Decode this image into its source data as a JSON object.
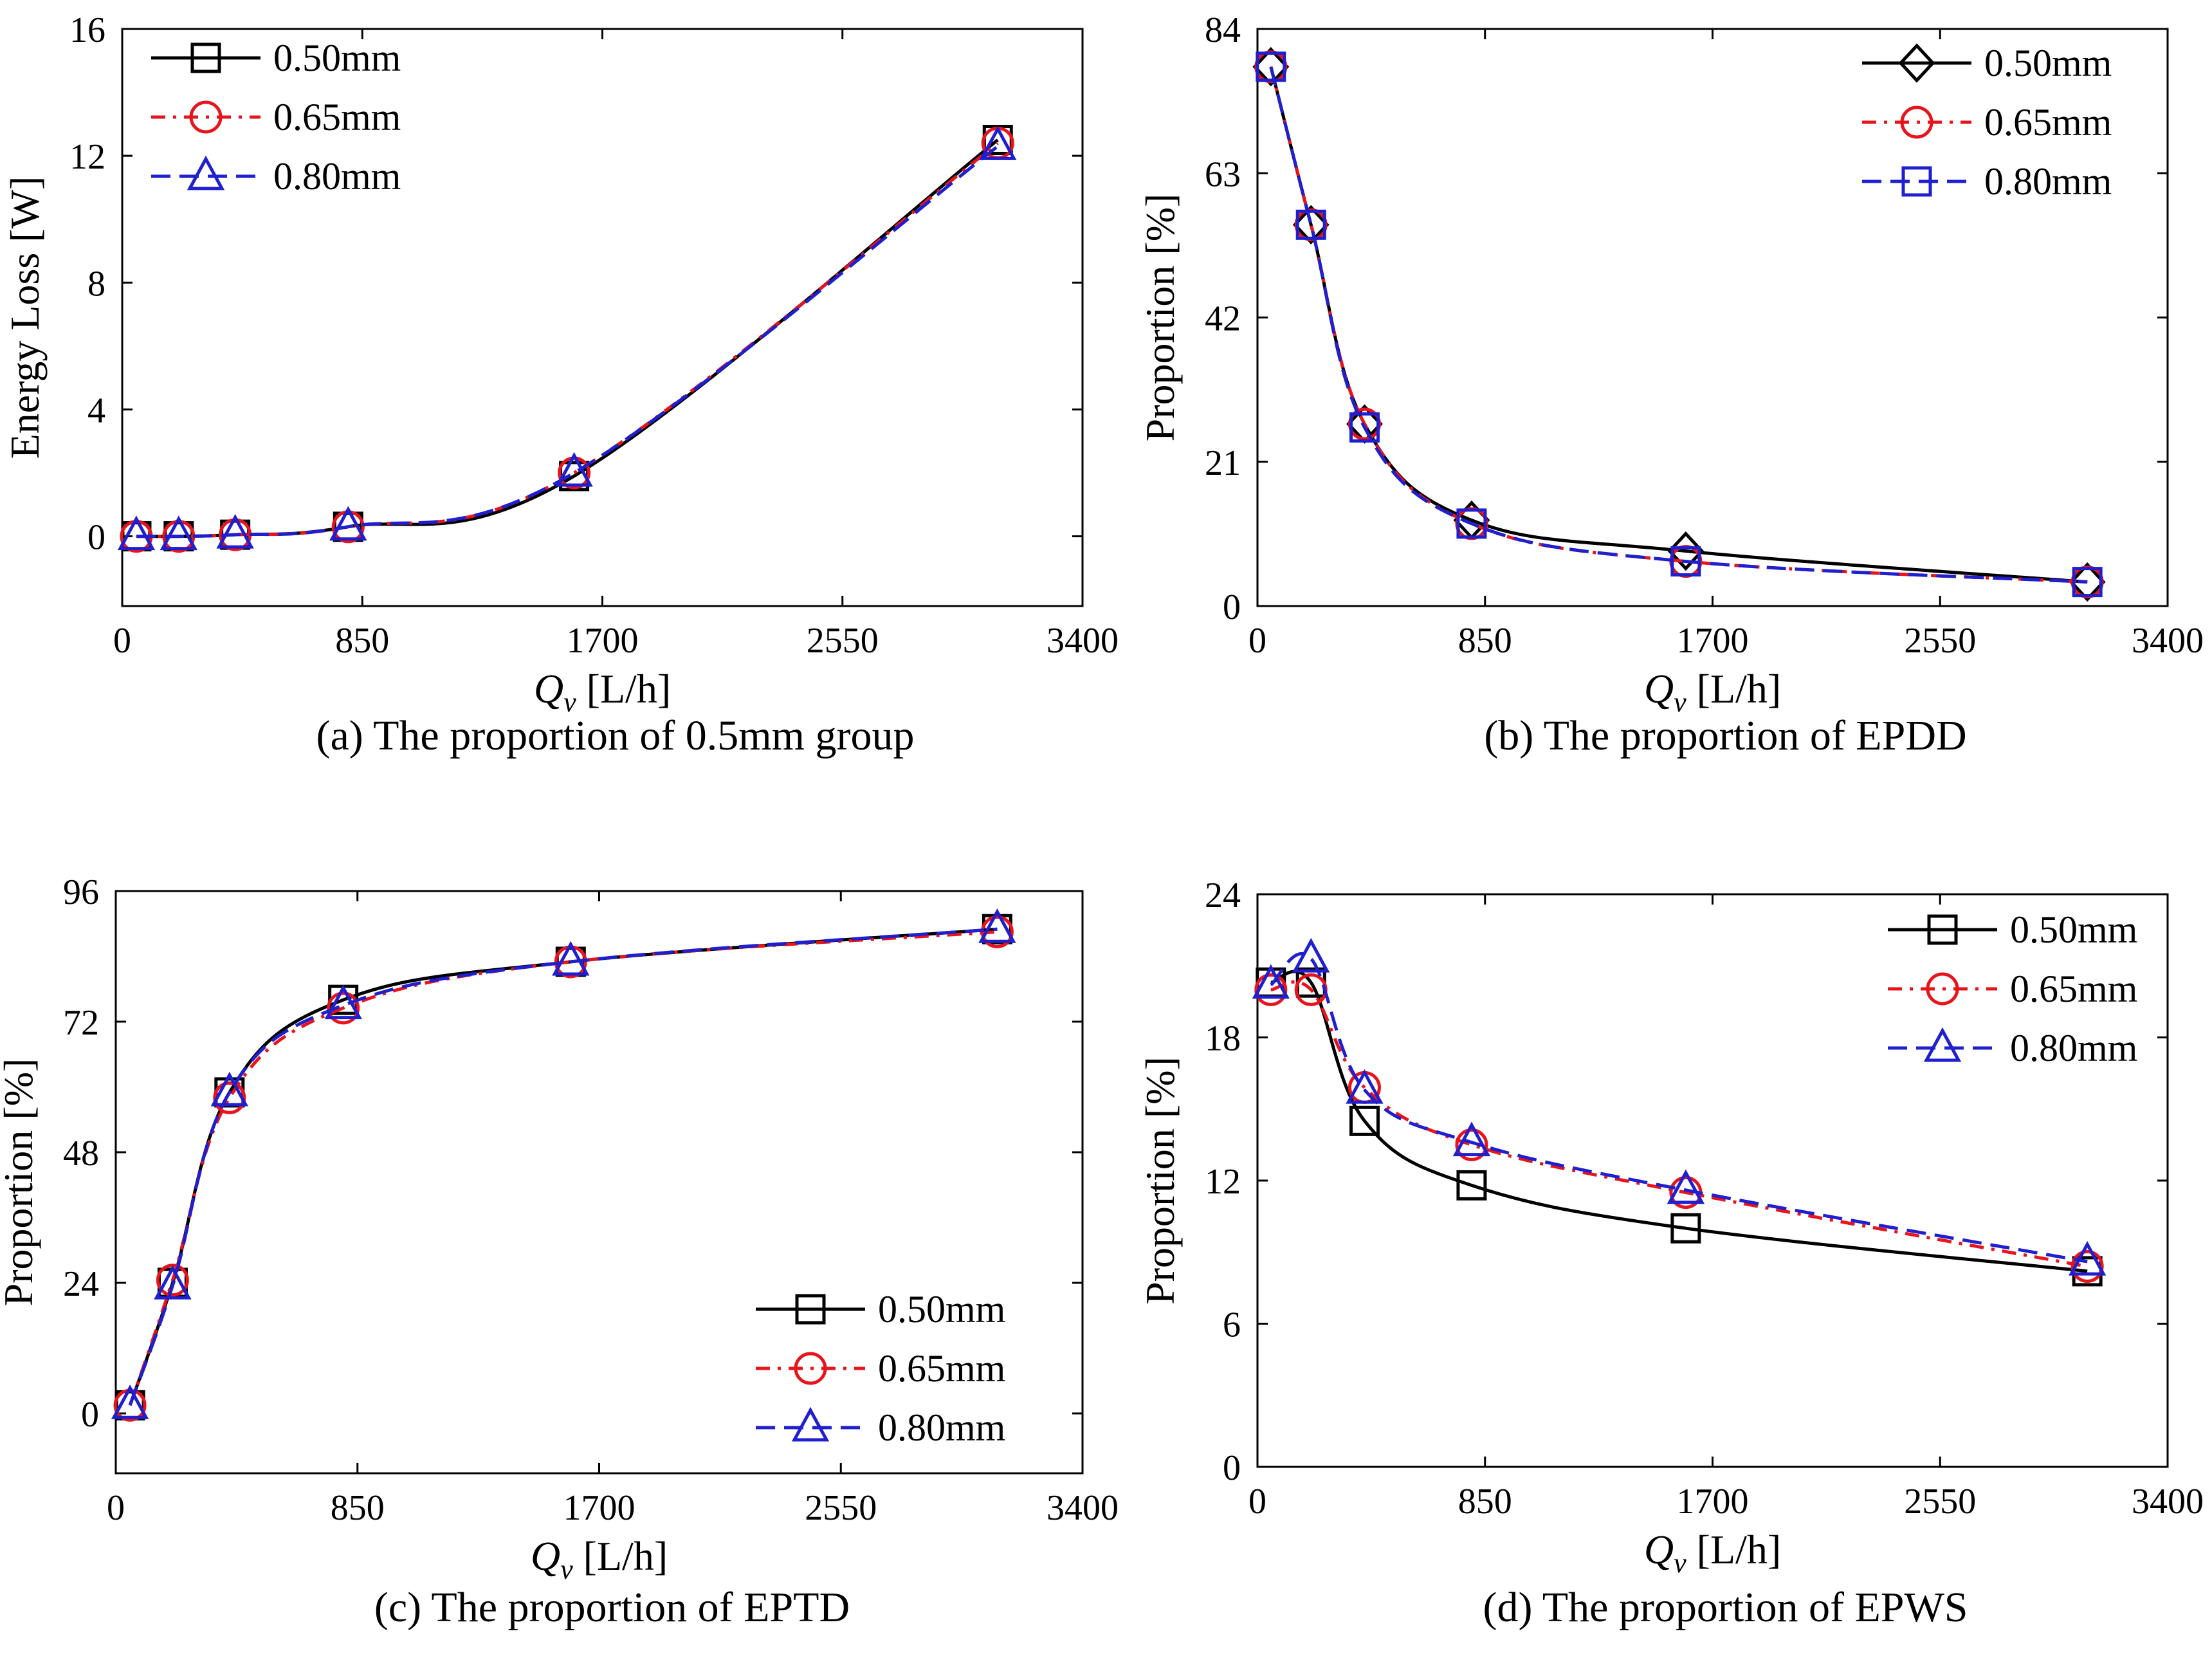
{
  "figure": {
    "markers": {
      "0.50mm": "square",
      "0.65mm": "circle",
      "0.80mm": "triangle"
    }
  },
  "chart_data": [
    {
      "id": "a",
      "type": "line",
      "caption": "(a) The proportion of 0.5mm group",
      "xlabel_main": "Q",
      "xlabel_sub": "v",
      "xlabel_unit": " [L/h]",
      "ylabel": "Energy Loss [W]",
      "xlim": [
        0,
        3400
      ],
      "ylim": [
        -2.2,
        16
      ],
      "xticks": [
        0,
        850,
        1700,
        2550,
        3400
      ],
      "yticks": [
        0,
        4,
        8,
        12,
        16
      ],
      "legend_position": "top-left",
      "series": [
        {
          "name": "0.50mm",
          "color": "#000000",
          "dash": "solid",
          "marker": "square",
          "x": [
            50,
            200,
            400,
            800,
            1600,
            3100
          ],
          "y": [
            0.0,
            0.0,
            0.05,
            0.3,
            1.9,
            12.5
          ]
        },
        {
          "name": "0.65mm",
          "color": "#e8141b",
          "dash": "dashdot",
          "marker": "circle",
          "x": [
            50,
            200,
            400,
            800,
            1600,
            3100
          ],
          "y": [
            0.0,
            0.0,
            0.05,
            0.3,
            2.0,
            12.4
          ]
        },
        {
          "name": "0.80mm",
          "color": "#1f1fd0",
          "dash": "dash",
          "marker": "triangle",
          "x": [
            50,
            200,
            400,
            800,
            1600,
            3100
          ],
          "y": [
            0.0,
            0.0,
            0.05,
            0.3,
            2.0,
            12.3
          ]
        }
      ]
    },
    {
      "id": "b",
      "type": "line",
      "caption": "(b) The proportion of EPDD",
      "xlabel_main": "Q",
      "xlabel_sub": "v",
      "xlabel_unit": " [L/h]",
      "ylabel": "Proportion [%]",
      "xlim": [
        0,
        3400
      ],
      "ylim": [
        0,
        84
      ],
      "xticks": [
        0,
        850,
        1700,
        2550,
        3400
      ],
      "yticks": [
        0,
        21,
        42,
        63,
        84
      ],
      "legend_position": "top-right",
      "series": [
        {
          "name": "0.50mm",
          "color": "#000000",
          "dash": "solid",
          "marker": "diamond",
          "x": [
            50,
            200,
            400,
            800,
            1600,
            3100
          ],
          "y": [
            78.5,
            55.5,
            26.5,
            12.5,
            8.0,
            3.5
          ]
        },
        {
          "name": "0.65mm",
          "color": "#e8141b",
          "dash": "dashdot",
          "marker": "circle",
          "x": [
            50,
            200,
            400,
            800,
            1600,
            3100
          ],
          "y": [
            78.5,
            55.5,
            26.5,
            12.0,
            6.5,
            3.5
          ]
        },
        {
          "name": "0.80mm",
          "color": "#1f1fd0",
          "dash": "dash",
          "marker": "square",
          "x": [
            50,
            200,
            400,
            800,
            1600,
            3100
          ],
          "y": [
            78.5,
            55.5,
            26.0,
            12.0,
            6.5,
            3.5
          ]
        }
      ]
    },
    {
      "id": "c",
      "type": "line",
      "caption": "(c) The proportion of EPTD",
      "xlabel_main": "Q",
      "xlabel_sub": "v",
      "xlabel_unit": " [L/h]",
      "ylabel": "Proportion [%]",
      "xlim": [
        0,
        3400
      ],
      "ylim": [
        -11,
        96
      ],
      "xticks": [
        0,
        850,
        1700,
        2550,
        3400
      ],
      "yticks": [
        0,
        24,
        48,
        72,
        96
      ],
      "legend_position": "bottom-right",
      "series": [
        {
          "name": "0.50mm",
          "color": "#000000",
          "dash": "solid",
          "marker": "square",
          "x": [
            50,
            200,
            400,
            800,
            1600,
            3100
          ],
          "y": [
            1.5,
            24.0,
            59.0,
            76.0,
            83.0,
            89.0
          ]
        },
        {
          "name": "0.65mm",
          "color": "#e8141b",
          "dash": "dashdot",
          "marker": "circle",
          "x": [
            50,
            200,
            400,
            800,
            1600,
            3100
          ],
          "y": [
            1.5,
            24.5,
            58.0,
            74.5,
            83.0,
            88.5
          ]
        },
        {
          "name": "0.80mm",
          "color": "#1f1fd0",
          "dash": "dash",
          "marker": "triangle",
          "x": [
            50,
            200,
            400,
            800,
            1600,
            3100
          ],
          "y": [
            1.5,
            23.5,
            59.0,
            75.0,
            83.0,
            89.0
          ]
        }
      ]
    },
    {
      "id": "d",
      "type": "line",
      "caption": "(d) The proportion of EPWS",
      "xlabel_main": "Q",
      "xlabel_sub": "v",
      "xlabel_unit": " [L/h]",
      "ylabel": "Proportion [%]",
      "xlim": [
        0,
        3400
      ],
      "ylim": [
        0,
        24
      ],
      "xticks": [
        0,
        850,
        1700,
        2550,
        3400
      ],
      "yticks": [
        0,
        6,
        12,
        18,
        24
      ],
      "legend_position": "top-right",
      "series": [
        {
          "name": "0.50mm",
          "color": "#000000",
          "dash": "solid",
          "marker": "square",
          "x": [
            50,
            200,
            400,
            800,
            1600,
            3100
          ],
          "y": [
            20.3,
            20.3,
            14.5,
            11.8,
            10.0,
            8.2
          ]
        },
        {
          "name": "0.65mm",
          "color": "#e8141b",
          "dash": "dashdot",
          "marker": "circle",
          "x": [
            50,
            200,
            400,
            800,
            1600,
            3100
          ],
          "y": [
            20.0,
            20.0,
            15.9,
            13.5,
            11.5,
            8.4
          ]
        },
        {
          "name": "0.80mm",
          "color": "#1f1fd0",
          "dash": "dash",
          "marker": "triangle",
          "x": [
            50,
            200,
            400,
            800,
            1600,
            3100
          ],
          "y": [
            20.2,
            21.3,
            15.8,
            13.6,
            11.6,
            8.6
          ]
        }
      ]
    }
  ]
}
